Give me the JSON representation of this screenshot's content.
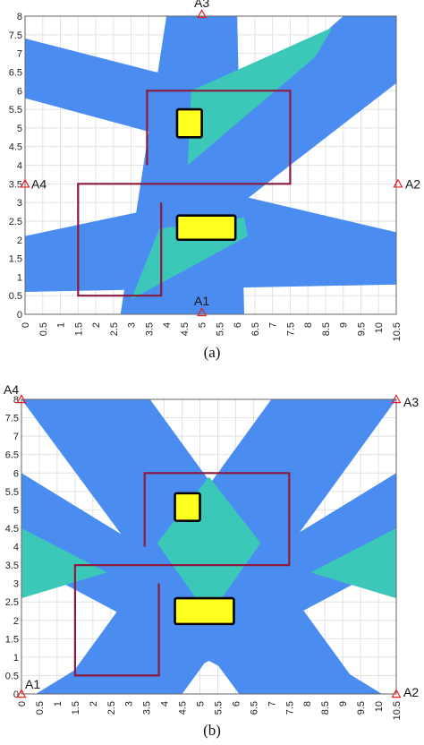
{
  "chart_data": [
    {
      "type": "scatter",
      "panel": "a",
      "caption": "(a)",
      "xlim": [
        0,
        10.5
      ],
      "ylim": [
        0,
        8
      ],
      "xticks": [
        "0",
        "0.5",
        "1",
        "1.5",
        "2",
        "2.5",
        "3",
        "3.5",
        "4",
        "4.5",
        "5",
        "5.5",
        "6",
        "6.5",
        "7",
        "7.5",
        "8",
        "8.5",
        "9",
        "9.5",
        "10",
        "10.5"
      ],
      "yticks": [
        "0",
        "0.5",
        "1",
        "1.5",
        "2",
        "2.5",
        "3",
        "3.5",
        "4",
        "4.5",
        "5",
        "5.5",
        "6",
        "6.5",
        "7",
        "7.5",
        "8"
      ],
      "grid": true,
      "anchors": [
        {
          "label": "A1",
          "x": 5.0,
          "y": 0.05
        },
        {
          "label": "A2",
          "x": 10.55,
          "y": 3.5
        },
        {
          "label": "A3",
          "x": 5.0,
          "y": 8.05
        },
        {
          "label": "A4",
          "x": 0.0,
          "y": 3.5
        }
      ],
      "coverage_polygons": [
        [
          [
            4.0,
            8.0
          ],
          [
            6.0,
            8.0
          ],
          [
            6.2,
            0.0
          ],
          [
            2.7,
            0.0
          ]
        ],
        [
          [
            0,
            7.4
          ],
          [
            0,
            5.8
          ],
          [
            7.0,
            4.0
          ],
          [
            7.4,
            5.6
          ]
        ],
        [
          [
            10.5,
            8.0
          ],
          [
            10.5,
            6.2
          ],
          [
            7.5,
            4.0
          ],
          [
            4.8,
            2.0
          ],
          [
            3.5,
            3.4
          ],
          [
            9.0,
            8.0
          ]
        ],
        [
          [
            0,
            2.1
          ],
          [
            0,
            0.6
          ],
          [
            10.5,
            0.8
          ],
          [
            10.5,
            2.2
          ],
          [
            6.0,
            3.2
          ],
          [
            4.5,
            3.0
          ]
        ]
      ],
      "overlap_polygons": [
        [
          [
            4.7,
            6.0
          ],
          [
            8.7,
            7.7
          ],
          [
            8.2,
            6.9
          ],
          [
            4.6,
            4.0
          ]
        ],
        [
          [
            3.8,
            2.3
          ],
          [
            3.0,
            0.4
          ],
          [
            6.3,
            2.1
          ],
          [
            6.2,
            2.6
          ]
        ]
      ],
      "obstacles": [
        {
          "x": [
            4.3,
            5.0
          ],
          "y": [
            4.75,
            5.5
          ]
        },
        {
          "x": [
            4.3,
            5.95
          ],
          "y": [
            2.0,
            2.65
          ]
        }
      ],
      "walls": [
        [
          [
            3.45,
            4.0
          ],
          [
            3.45,
            6.0
          ],
          [
            7.5,
            6.0
          ],
          [
            7.5,
            3.5
          ],
          [
            1.5,
            3.5
          ],
          [
            1.5,
            0.5
          ],
          [
            3.85,
            0.5
          ],
          [
            3.85,
            3.0
          ]
        ]
      ]
    },
    {
      "type": "scatter",
      "panel": "b",
      "caption": "(b)",
      "xlim": [
        0,
        10.5
      ],
      "ylim": [
        0,
        8
      ],
      "xticks": [
        "0",
        "0.5",
        "1",
        "1.5",
        "2",
        "2.5",
        "3",
        "3.5",
        "4",
        "4.5",
        "5",
        "5.5",
        "6",
        "6.5",
        "7",
        "7.5",
        "8",
        "8.5",
        "9",
        "9.5",
        "10",
        "10.5"
      ],
      "yticks": [
        "0",
        "0.5",
        "1",
        "1.5",
        "2",
        "2.5",
        "3",
        "3.5",
        "4",
        "4.5",
        "5",
        "5.5",
        "6",
        "6.5",
        "7",
        "7.5",
        "8"
      ],
      "grid": true,
      "anchors": [
        {
          "label": "A1",
          "x": 0.0,
          "y": 0.0
        },
        {
          "label": "A2",
          "x": 10.5,
          "y": 0.0
        },
        {
          "label": "A3",
          "x": 10.5,
          "y": 8.0
        },
        {
          "label": "A4",
          "x": 0.0,
          "y": 8.0
        }
      ],
      "coverage_polygons": [
        [
          [
            0,
            8.0
          ],
          [
            3.6,
            8.0
          ],
          [
            9.6,
            0
          ],
          [
            6.1,
            0
          ]
        ],
        [
          [
            7.0,
            8.0
          ],
          [
            10.5,
            8.0
          ],
          [
            4.5,
            0
          ],
          [
            1.0,
            0
          ]
        ],
        [
          [
            0,
            6.0
          ],
          [
            0,
            3.6
          ],
          [
            7.0,
            0
          ],
          [
            10.1,
            0
          ]
        ],
        [
          [
            10.5,
            6.0
          ],
          [
            10.5,
            3.6
          ],
          [
            3.5,
            0
          ],
          [
            0.4,
            0
          ]
        ]
      ],
      "overlap_polygons": [
        [
          [
            5.25,
            5.9
          ],
          [
            6.7,
            4.1
          ],
          [
            5.25,
            2.1
          ],
          [
            3.8,
            4.1
          ]
        ],
        [
          [
            0,
            4.5
          ],
          [
            2.4,
            3.3
          ],
          [
            0,
            2.6
          ]
        ],
        [
          [
            10.5,
            4.5
          ],
          [
            8.1,
            3.3
          ],
          [
            10.5,
            2.6
          ]
        ]
      ],
      "obstacles": [
        {
          "x": [
            4.3,
            5.0
          ],
          "y": [
            4.7,
            5.45
          ]
        },
        {
          "x": [
            4.3,
            5.95
          ],
          "y": [
            1.9,
            2.6
          ]
        }
      ],
      "walls": [
        [
          [
            3.45,
            4.0
          ],
          [
            3.45,
            6.0
          ],
          [
            7.5,
            6.0
          ],
          [
            7.5,
            3.5
          ],
          [
            1.5,
            3.5
          ],
          [
            1.5,
            0.5
          ],
          [
            3.85,
            0.5
          ],
          [
            3.85,
            3.0
          ]
        ]
      ]
    }
  ],
  "colors": {
    "coverage": "#4a8cf0",
    "overlap": "#3cc8b8",
    "obstacle_fill": "#ffff1e",
    "obstacle_edge": "#000000",
    "wall": "#8b1a3c",
    "anchor": "#e82020",
    "grid": "#e2e2e2",
    "axis": "#666666"
  }
}
